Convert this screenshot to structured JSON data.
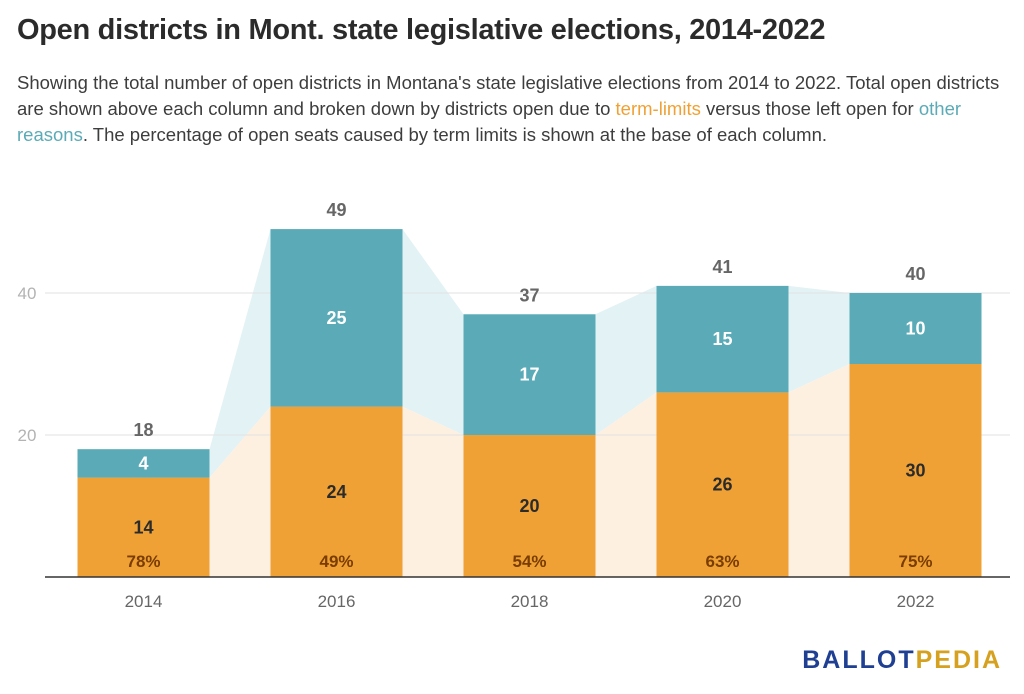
{
  "title": "Open districts in Mont. state legislative elections, 2014-2022",
  "subtitle": {
    "part1": "Showing the total number of open districts in Montana's state legislative elections from 2014 to 2022. Total open districts are shown above each column and broken down by districts open due to ",
    "term_limits": "term-limits",
    "part2": " versus those left open for ",
    "other_reasons": "other reasons",
    "part3": ". The percentage of open seats caused by term limits is shown at the base of each column."
  },
  "logo": {
    "part1": "BALLOT",
    "part2": "PEDIA"
  },
  "colors": {
    "term_limits": "#f0a135",
    "other_reasons": "#5aabb7",
    "term_limits_fill": "#fdf0e1",
    "other_reasons_fill": "#e3f2f4"
  },
  "chart_data": {
    "type": "bar",
    "stacked": true,
    "categories": [
      "2014",
      "2016",
      "2018",
      "2020",
      "2022"
    ],
    "series": [
      {
        "name": "term-limits",
        "values": [
          14,
          24,
          20,
          26,
          30
        ]
      },
      {
        "name": "other reasons",
        "values": [
          4,
          25,
          17,
          15,
          10
        ]
      }
    ],
    "totals": [
      18,
      49,
      37,
      41,
      40
    ],
    "percent_term_limited": [
      "78%",
      "49%",
      "54%",
      "63%",
      "75%"
    ],
    "y_ticks": [
      20,
      40
    ],
    "ylim": [
      0,
      52
    ],
    "grid": true
  }
}
